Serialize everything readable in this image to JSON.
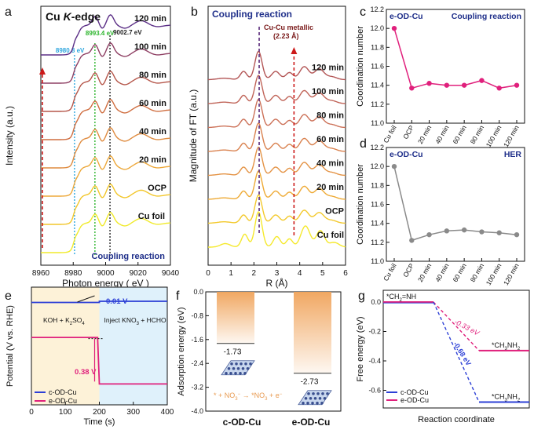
{
  "chart_data": [
    {
      "panel": "a",
      "type": "line",
      "title": "Cu K-edge",
      "title_parts": {
        "element": "Cu",
        "edge_italic": "K",
        "suffix": "-edge"
      },
      "xlabel": "Photon energy ( eV )",
      "ylabel": "Intensity (a.u.)",
      "xlim": [
        8960,
        9040
      ],
      "xticks": [
        "8960",
        "8980",
        "9000",
        "9020",
        "9040"
      ],
      "annotation": "Coupling reaction",
      "reference_lines": [
        {
          "x": 8980.8,
          "label": "8980.8 eV",
          "color": "#2fa6de"
        },
        {
          "x": 8993.4,
          "label": "8993.4 eV",
          "color": "#2db52d"
        },
        {
          "x": 9002.7,
          "label": "9002.7 eV",
          "color": "#222222"
        }
      ],
      "series": [
        {
          "name": "Cu foil",
          "color": "#f0ea2a"
        },
        {
          "name": "OCP",
          "color": "#f2c62a"
        },
        {
          "name": "20 min",
          "color": "#eda83a"
        },
        {
          "name": "40 min",
          "color": "#df8b3f"
        },
        {
          "name": "60 min",
          "color": "#cf6d3f"
        },
        {
          "name": "80 min",
          "color": "#b5564a"
        },
        {
          "name": "100 min",
          "color": "#8e3f63"
        },
        {
          "name": "120 min",
          "color": "#5b2e86"
        }
      ]
    },
    {
      "panel": "b",
      "type": "line",
      "title": "Coupling reaction",
      "xlabel": "R (Å)",
      "ylabel": "Magnitude of FT (a.u.)",
      "xlim": [
        0,
        6
      ],
      "xticks": [
        "0",
        "1",
        "2",
        "3",
        "4",
        "5",
        "6"
      ],
      "peak_annotation": {
        "line1": "Cu-Cu metallic",
        "line2": "(2.23 Å)",
        "x": 2.23
      },
      "marker_x": 3.75,
      "series": [
        {
          "name": "Cu foil",
          "color": "#f5e92c"
        },
        {
          "name": "OCP",
          "color": "#f3c92c"
        },
        {
          "name": "20 min",
          "color": "#eeaa35"
        },
        {
          "name": "40 min",
          "color": "#e49345"
        },
        {
          "name": "60 min",
          "color": "#d9814e"
        },
        {
          "name": "80 min",
          "color": "#cc7158"
        },
        {
          "name": "100 min",
          "color": "#c06458"
        },
        {
          "name": "120 min",
          "color": "#b35656"
        }
      ]
    },
    {
      "panel": "c",
      "type": "line",
      "sample": "e-OD-Cu",
      "title": "Coupling reaction",
      "ylabel": "Coordination number",
      "ylim": [
        11.0,
        12.2
      ],
      "yticks": [
        "11.0",
        "11.2",
        "11.4",
        "11.6",
        "11.8",
        "12.0",
        "12.2"
      ],
      "categories": [
        "Cu foil",
        "OCP",
        "20 min",
        "40 min",
        "60 min",
        "80 min",
        "100 min",
        "120 min"
      ],
      "values": [
        12.0,
        11.37,
        11.42,
        11.4,
        11.4,
        11.45,
        11.37,
        11.4
      ],
      "color": "#e0207c"
    },
    {
      "panel": "d",
      "type": "line",
      "sample": "e-OD-Cu",
      "title": "HER",
      "ylabel": "Coordination number",
      "ylim": [
        11.0,
        12.2
      ],
      "yticks": [
        "11.0",
        "11.2",
        "11.4",
        "11.6",
        "11.8",
        "12.0",
        "12.2"
      ],
      "categories": [
        "Cu foil",
        "OCP",
        "20 min",
        "40 min",
        "60 min",
        "80 min",
        "100 min",
        "120 min"
      ],
      "values": [
        12.0,
        11.22,
        11.28,
        11.32,
        11.33,
        11.31,
        11.3,
        11.28
      ],
      "color": "#8a8a8a"
    },
    {
      "panel": "e",
      "type": "line",
      "xlabel": "Time (s)",
      "ylabel": "Potential (V vs. RHE)",
      "xlim": [
        0,
        400
      ],
      "xticks": [
        "0",
        "100",
        "200",
        "300",
        "400"
      ],
      "ylim": [
        -0.1,
        0.86
      ],
      "shading": {
        "left": {
          "label_html": "KOH + K<tspan baseline-shift=\"sub\" font-size=\"6\">2</tspan>SO<tspan baseline-shift=\"sub\" font-size=\"6\">4</tspan>",
          "color": "#fdf2d8"
        },
        "right": {
          "label_html": "Inject KNO<tspan baseline-shift=\"sub\" font-size=\"6\">3</tspan> + HCHO",
          "color": "#dff1fb"
        },
        "boundary_time": 200
      },
      "annotations": {
        "delta_c": "0.01 V",
        "delta_e": "0.38 V"
      },
      "series": [
        {
          "name": "c-OD-Cu",
          "color": "#2c3fd6",
          "points": [
            [
              0,
              0.735
            ],
            [
              200,
              0.735
            ],
            [
              200,
              0.745
            ],
            [
              400,
              0.745
            ]
          ]
        },
        {
          "name": "e-OD-Cu",
          "color": "#e0207c",
          "points": [
            [
              0,
              0.45
            ],
            [
              195,
              0.45
            ],
            [
              200,
              0.07
            ],
            [
              400,
              0.07
            ]
          ]
        }
      ]
    },
    {
      "panel": "f",
      "type": "bar",
      "ylabel": "Adsorption energy (eV)",
      "ylim": [
        -4.0,
        0.0
      ],
      "yticks": [
        "0.0",
        "-0.8",
        "-1.6",
        "-2.4",
        "-3.2",
        "-4.0"
      ],
      "categories": [
        "c-OD-Cu",
        "e-OD-Cu"
      ],
      "values": [
        -1.73,
        -2.73
      ],
      "value_labels": [
        "-1.73",
        "-2.73"
      ],
      "reaction_html": "<tspan>*</tspan> + NO<tspan baseline-shift=\"sub\" font-size=\"6\">3</tspan><tspan baseline-shift=\"super\" font-size=\"6\">−</tspan> → <tspan>*</tspan>NO<tspan baseline-shift=\"sub\" font-size=\"6\">3</tspan> + e<tspan baseline-shift=\"super\" font-size=\"6\">−</tspan>",
      "bar_color": "#f0a35a"
    },
    {
      "panel": "g",
      "type": "line",
      "ylabel": "Free energy (eV)",
      "xlabel": "Reaction coordinate",
      "ylim": [
        -0.72,
        0.08
      ],
      "yticks": [
        "0.0",
        "-0.2",
        "-0.4",
        "-0.6"
      ],
      "levels": [
        {
          "energy": 0.0,
          "label_html": "<tspan>*</tspan>CH<tspan baseline-shift=\"sub\" font-size=\"6\">2</tspan>=NH"
        },
        {
          "energy": -0.33,
          "label_html": "<tspan>*</tspan>CH<tspan baseline-shift=\"sub\" font-size=\"6\">3</tspan>NH<tspan baseline-shift=\"sub\" font-size=\"6\">2</tspan>"
        },
        {
          "energy": -0.68,
          "label_html": "<tspan>*</tspan>CH<tspan baseline-shift=\"sub\" font-size=\"6\">3</tspan>NH<tspan baseline-shift=\"sub\" font-size=\"6\">2</tspan>"
        }
      ],
      "series": [
        {
          "name": "c-OD-Cu",
          "color": "#2c3fd6",
          "delta": "-0.68 eV"
        },
        {
          "name": "e-OD-Cu",
          "color": "#e0207c",
          "delta": "-0.33 eV"
        }
      ]
    }
  ],
  "panel_labels": [
    "a",
    "b",
    "c",
    "d",
    "e",
    "f",
    "g"
  ]
}
